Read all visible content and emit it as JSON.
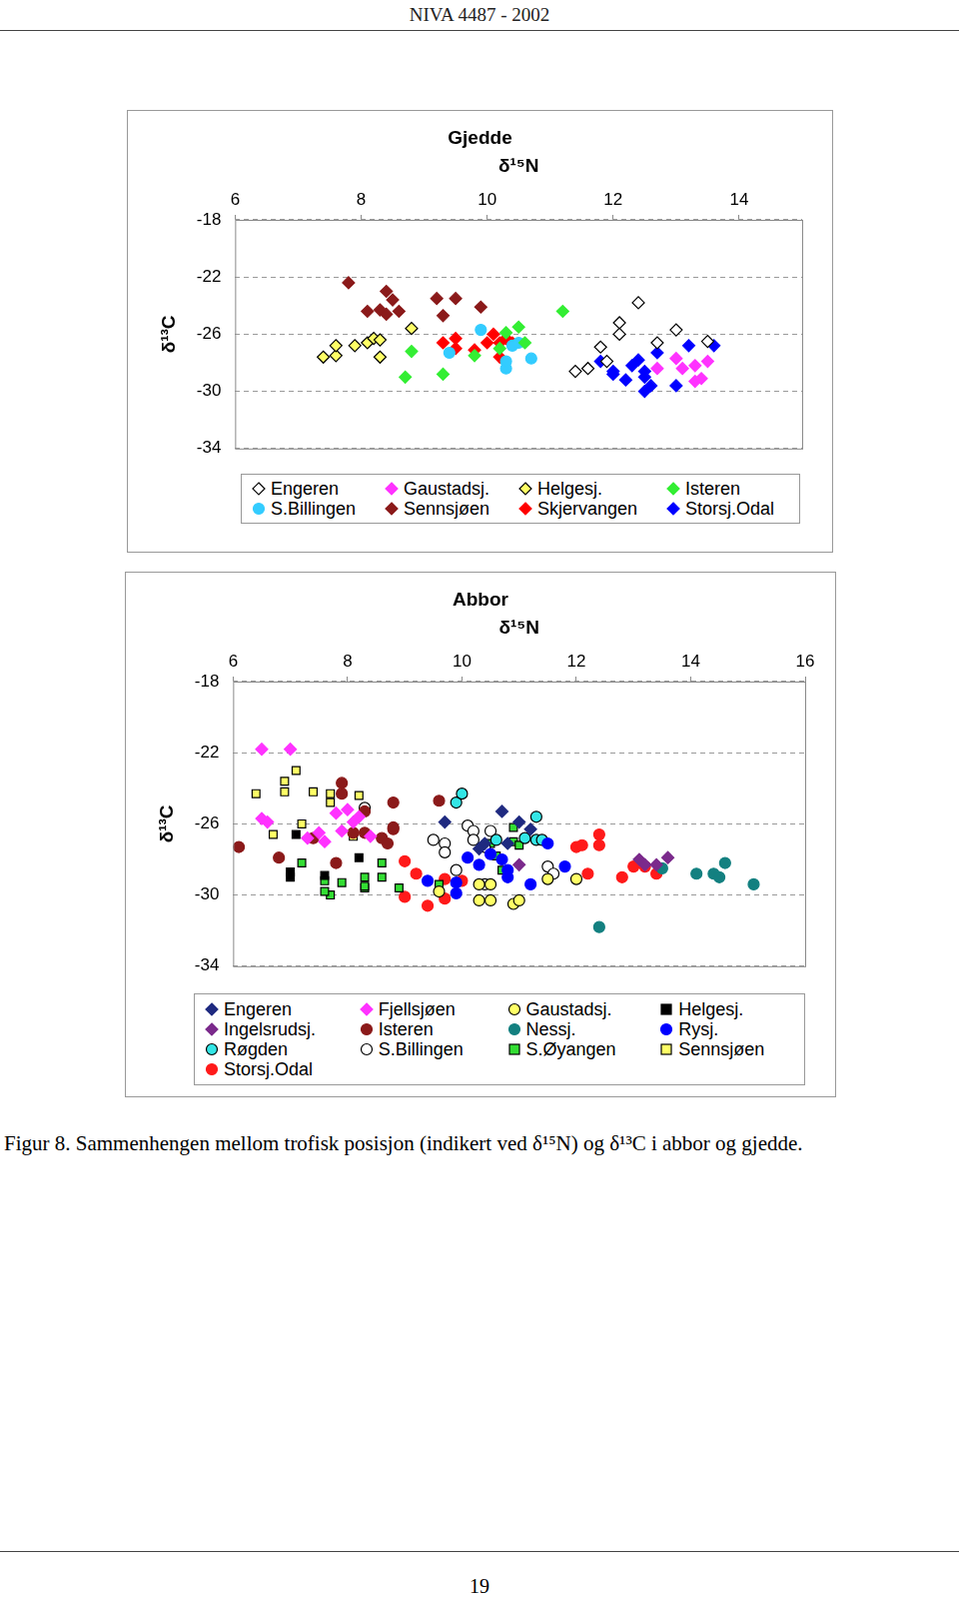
{
  "header": "NIVA 4487 - 2002",
  "chart_data": [
    {
      "type": "scatter",
      "title": "Gjedde",
      "x_label": "δ¹⁵N",
      "y_label": "δ¹³C",
      "xlim": [
        6,
        15
      ],
      "xticks": [
        6,
        8,
        10,
        12,
        14
      ],
      "ylim": [
        -34,
        -18
      ],
      "yticks": [
        -34,
        -30,
        -26,
        -22,
        -18
      ],
      "grid": true,
      "legend": "bottom",
      "series": [
        {
          "name": "Engeren",
          "color": "#000000",
          "marker": "diamond_open",
          "x": [
            11.4,
            11.6,
            11.8,
            12.1,
            12.1,
            12.4,
            12.7,
            13.0,
            13.5,
            11.9
          ],
          "values": [
            -28.6,
            -28.4,
            -26.9,
            -25.2,
            -26.0,
            -23.8,
            -26.6,
            -25.7,
            -26.5,
            -27.9
          ]
        },
        {
          "name": "Gaustadsj.",
          "color": "#ff33ff",
          "marker": "diamond",
          "x": [
            12.7,
            13.0,
            13.1,
            13.3,
            13.5,
            13.3,
            13.4
          ],
          "values": [
            -28.4,
            -27.7,
            -28.4,
            -28.2,
            -27.9,
            -29.3,
            -29.1
          ]
        },
        {
          "name": "Helgesj.",
          "color": "#ffff66",
          "marker": "diamond_outlined",
          "x": [
            7.4,
            7.6,
            7.6,
            7.9,
            8.1,
            8.2,
            8.3,
            8.3,
            8.8
          ],
          "values": [
            -27.6,
            -27.5,
            -26.8,
            -26.8,
            -26.6,
            -26.3,
            -26.4,
            -27.6,
            -25.6
          ]
        },
        {
          "name": "Isteren",
          "color": "#33ee33",
          "marker": "diamond",
          "x": [
            8.7,
            8.8,
            9.3,
            9.8,
            10.3,
            10.5,
            10.6,
            11.2,
            10.2
          ],
          "values": [
            -29.0,
            -27.2,
            -28.8,
            -27.5,
            -25.9,
            -25.5,
            -26.6,
            -24.4,
            -27.0
          ]
        },
        {
          "name": "S.Billingen",
          "color": "#33ccff",
          "marker": "circle",
          "x": [
            9.4,
            9.9,
            10.3,
            10.3,
            10.7,
            10.4,
            10.5
          ],
          "values": [
            -27.3,
            -25.7,
            -28.4,
            -27.9,
            -27.7,
            -26.8,
            -26.6
          ]
        },
        {
          "name": "Sennsjøen",
          "color": "#8b1a1a",
          "marker": "diamond",
          "x": [
            7.8,
            8.1,
            8.3,
            8.4,
            8.5,
            8.4,
            8.6,
            9.2,
            9.5,
            9.3,
            9.9
          ],
          "values": [
            -22.4,
            -24.4,
            -24.3,
            -23.0,
            -23.6,
            -24.6,
            -24.4,
            -23.5,
            -23.5,
            -24.7,
            -24.1
          ]
        },
        {
          "name": "Skjervangen",
          "color": "#ff0000",
          "marker": "diamond",
          "x": [
            9.3,
            9.5,
            9.5,
            9.8,
            10.0,
            10.1,
            10.2,
            10.2,
            10.3,
            10.4
          ],
          "values": [
            -26.6,
            -26.3,
            -27.0,
            -27.1,
            -26.6,
            -26.0,
            -26.6,
            -27.6,
            -26.3,
            -26.6
          ]
        },
        {
          "name": "Storsj.Odal",
          "color": "#0000ff",
          "marker": "diamond",
          "x": [
            11.8,
            12.0,
            12.2,
            12.3,
            12.4,
            12.5,
            12.5,
            12.6,
            12.7,
            13.0,
            13.2,
            13.6,
            12.5,
            12.0
          ],
          "values": [
            -27.9,
            -28.8,
            -29.2,
            -28.2,
            -27.8,
            -28.6,
            -30.0,
            -29.6,
            -27.3,
            -29.6,
            -26.8,
            -26.8,
            -29.0,
            -28.6
          ]
        }
      ]
    },
    {
      "type": "scatter",
      "title": "Abbor",
      "x_label": "δ¹⁵N",
      "y_label": "δ¹³C",
      "xlim": [
        6,
        16
      ],
      "xticks": [
        6,
        8,
        10,
        12,
        14,
        16
      ],
      "ylim": [
        -34,
        -18
      ],
      "yticks": [
        -34,
        -30,
        -26,
        -22,
        -18
      ],
      "grid": true,
      "legend": "bottom",
      "series": [
        {
          "name": "Engeren",
          "color": "#1f2a80",
          "marker": "diamond",
          "x": [
            9.7,
            10.7,
            11.0,
            10.4,
            10.8,
            10.3,
            11.2
          ],
          "values": [
            -25.9,
            -25.3,
            -25.9,
            -27.1,
            -27.1,
            -27.4,
            -26.3
          ]
        },
        {
          "name": "Fjellsjøen",
          "color": "#ff33ff",
          "marker": "diamond",
          "x": [
            6.5,
            7.0,
            6.5,
            6.6,
            7.3,
            7.5,
            7.8,
            8.0,
            8.1,
            8.2,
            7.6,
            8.4,
            7.9
          ],
          "values": [
            -21.8,
            -21.8,
            -25.7,
            -25.9,
            -26.8,
            -26.5,
            -25.4,
            -25.2,
            -25.9,
            -25.6,
            -27.0,
            -26.7,
            -26.4
          ]
        },
        {
          "name": "Gaustadsj.",
          "color": "#ffff66",
          "marker": "circle_outlined",
          "x": [
            10.3,
            10.5,
            10.3,
            10.5,
            10.9,
            11.0,
            11.5,
            12.0,
            9.6
          ],
          "values": [
            -29.4,
            -29.4,
            -30.3,
            -30.3,
            -30.5,
            -30.3,
            -29.1,
            -29.1,
            -29.8
          ]
        },
        {
          "name": "Helgesj.",
          "color": "#000000",
          "marker": "square",
          "x": [
            7.0,
            7.0,
            7.1,
            7.6,
            8.2
          ],
          "values": [
            -29.0,
            -28.7,
            -26.6,
            -28.9,
            -27.9
          ]
        },
        {
          "name": "Ingelsrudsj.",
          "color": "#7b2a8c",
          "marker": "diamond",
          "x": [
            11.0,
            13.1,
            13.2,
            13.6,
            13.4
          ],
          "values": [
            -28.3,
            -28.0,
            -28.3,
            -27.9,
            -28.3
          ]
        },
        {
          "name": "Isteren",
          "color": "#8b1a1a",
          "marker": "circle",
          "x": [
            6.1,
            6.8,
            7.4,
            7.8,
            7.9,
            8.3,
            8.3,
            8.6,
            8.7,
            8.8,
            8.8,
            8.8,
            9.6,
            7.9,
            8.1
          ],
          "values": [
            -27.3,
            -27.9,
            -26.8,
            -28.2,
            -24.3,
            -25.3,
            -26.5,
            -26.8,
            -27.1,
            -26.3,
            -26.2,
            -24.8,
            -24.7,
            -23.7,
            -26.5
          ]
        },
        {
          "name": "Nessj.",
          "color": "#138080",
          "marker": "circle",
          "x": [
            12.4,
            14.1,
            14.4,
            14.5,
            14.6,
            15.1,
            13.5
          ],
          "values": [
            -31.8,
            -28.8,
            -28.8,
            -29.0,
            -28.2,
            -29.4,
            -28.5
          ]
        },
        {
          "name": "Rysj.",
          "color": "#0000ff",
          "marker": "circle",
          "x": [
            9.4,
            9.9,
            9.9,
            10.1,
            10.3,
            10.7,
            10.8,
            11.2,
            11.5,
            11.8,
            10.8,
            10.5
          ],
          "values": [
            -29.2,
            -29.3,
            -29.9,
            -27.9,
            -28.3,
            -28.0,
            -28.6,
            -29.4,
            -27.1,
            -28.4,
            -29.0,
            -27.7
          ]
        },
        {
          "name": "Røgden",
          "color": "#33e6e6",
          "marker": "circle_outlined",
          "x": [
            9.9,
            10.0,
            10.6,
            11.1,
            11.3,
            11.3,
            11.4
          ],
          "values": [
            -24.8,
            -24.3,
            -26.9,
            -26.8,
            -25.6,
            -26.9,
            -26.9
          ]
        },
        {
          "name": "S.Billingen",
          "color": "#000000",
          "marker": "circle_open",
          "x": [
            8.3,
            9.5,
            9.7,
            9.7,
            9.9,
            10.1,
            10.2,
            10.2,
            10.4,
            10.5,
            11.5,
            11.6,
            10.4
          ],
          "values": [
            -25.1,
            -26.9,
            -27.1,
            -27.6,
            -28.6,
            -26.1,
            -26.4,
            -26.9,
            -27.3,
            -26.4,
            -28.4,
            -28.8,
            -29.4
          ]
        },
        {
          "name": "S.Øyangen",
          "color": "#33dd33",
          "marker": "square_outlined",
          "x": [
            7.2,
            7.6,
            7.7,
            7.9,
            8.3,
            8.3,
            8.6,
            8.6,
            8.9,
            9.6,
            10.4,
            10.7,
            10.5,
            10.6,
            10.9,
            10.9,
            11.0,
            7.6,
            8.3
          ],
          "values": [
            -28.2,
            -29.2,
            -30.0,
            -29.3,
            -29.0,
            -29.6,
            -29.0,
            -28.2,
            -29.6,
            -29.4,
            -29.4,
            -28.6,
            -27.1,
            -27.8,
            -26.2,
            -27.0,
            -27.2,
            -29.8,
            -29.5
          ]
        },
        {
          "name": "Sennsjøen",
          "color": "#ffff66",
          "marker": "square_outlined",
          "x": [
            6.4,
            6.9,
            6.9,
            7.1,
            7.4,
            7.7,
            7.7,
            8.2,
            6.7,
            7.2,
            8.1
          ],
          "values": [
            -24.3,
            -23.6,
            -24.2,
            -23.0,
            -24.2,
            -24.3,
            -24.8,
            -24.4,
            -26.6,
            -26.0,
            -26.7
          ]
        },
        {
          "name": "Storsj.Odal",
          "color": "#ff1a1a",
          "marker": "circle",
          "x": [
            9.0,
            9.2,
            9.4,
            9.7,
            9.7,
            10.0,
            12.0,
            12.1,
            12.4,
            12.4,
            12.2,
            12.8,
            13.0,
            13.2,
            13.4,
            9.0
          ],
          "values": [
            -30.1,
            -28.8,
            -30.6,
            -30.2,
            -29.1,
            -29.2,
            -27.3,
            -27.2,
            -26.6,
            -27.2,
            -28.8,
            -29.0,
            -28.4,
            -28.4,
            -28.8,
            -28.1
          ]
        }
      ]
    }
  ],
  "caption": "Figur 8. Sammenhengen mellom trofisk posisjon (indikert ved δ¹⁵N) og δ¹³C i abbor og gjedde.",
  "page_number": "19"
}
